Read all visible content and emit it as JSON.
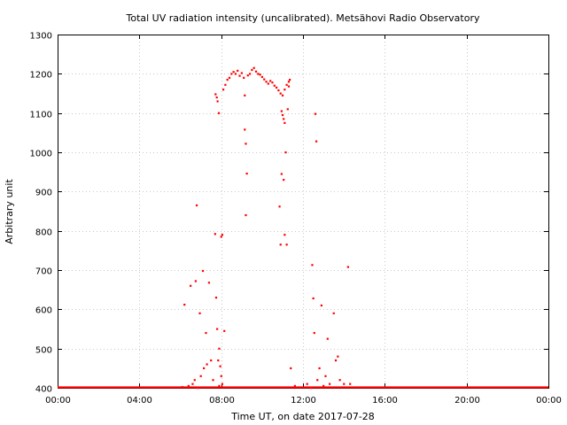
{
  "chart_data": {
    "type": "scatter",
    "title": "Total UV radiation intensity (uncalibrated). Metsähovi Radio Observatory",
    "xlabel": "Time UT, on date 2017-07-28",
    "ylabel": "Arbitrary unit",
    "xlim": [
      0,
      24
    ],
    "ylim": [
      400,
      1300
    ],
    "x_ticks": [
      0,
      4,
      8,
      12,
      16,
      20,
      24
    ],
    "x_tick_labels": [
      "00:00",
      "04:00",
      "08:00",
      "12:00",
      "16:00",
      "20:00",
      "00:00"
    ],
    "y_ticks": [
      400,
      500,
      600,
      700,
      800,
      900,
      1000,
      1100,
      1200,
      1300
    ],
    "y_tick_labels": [
      "400",
      "500",
      "600",
      "700",
      "800",
      "900",
      "1000",
      "1100",
      "1200",
      "1300"
    ],
    "grid": true,
    "point_color": "#ff0000",
    "series": [
      {
        "x": [
          6.2,
          6.5,
          6.75,
          6.8,
          6.95,
          7.1,
          7.25,
          7.4,
          7.7,
          7.75,
          7.8,
          8.0,
          8.05,
          8.15,
          7.85,
          7.9,
          7.95,
          8.0,
          9.15,
          9.2,
          9.25,
          9.2,
          9.15,
          10.85,
          10.9,
          10.95,
          11.05,
          11.1,
          11.2,
          12.45,
          12.5,
          12.55,
          12.6,
          12.65,
          12.9,
          13.2,
          13.5,
          13.7,
          14.2,
          14.3,
          8.1,
          8.2,
          8.3,
          8.4,
          8.5,
          8.6,
          8.7,
          8.8,
          8.9,
          9.0,
          9.1,
          9.3,
          9.4,
          9.5,
          9.6,
          9.7,
          9.8,
          9.9,
          10.0,
          10.1,
          10.2,
          10.3,
          10.4,
          10.5,
          10.6,
          10.7,
          10.8,
          10.9,
          11.0,
          11.1,
          11.2,
          11.3,
          11.35,
          7.72,
          7.78,
          7.82,
          7.88,
          10.95,
          11.0,
          11.05,
          11.1,
          11.15,
          11.25,
          11.3,
          6.1,
          6.4,
          6.6,
          6.7,
          6.85,
          7.0,
          7.15,
          7.3,
          7.5,
          7.6,
          7.9,
          8.05,
          11.4,
          11.6,
          12.2,
          12.4,
          12.7,
          12.8,
          13.0,
          13.1,
          13.3,
          13.6,
          13.8,
          14.0
        ],
        "y": [
          612,
          660,
          672,
          865,
          590,
          698,
          540,
          668,
          792,
          630,
          550,
          785,
          790,
          545,
          470,
          500,
          455,
          430,
          1058,
          1022,
          946,
          840,
          1145,
          862,
          765,
          945,
          930,
          790,
          765,
          713,
          628,
          540,
          1098,
          1028,
          610,
          525,
          590,
          480,
          708,
          410,
          1160,
          1172,
          1185,
          1190,
          1200,
          1205,
          1200,
          1208,
          1195,
          1202,
          1190,
          1196,
          1200,
          1210,
          1215,
          1206,
          1200,
          1198,
          1192,
          1186,
          1180,
          1175,
          1182,
          1178,
          1170,
          1165,
          1158,
          1150,
          1145,
          1160,
          1172,
          1180,
          1185,
          1148,
          1140,
          1130,
          1100,
          1105,
          1095,
          1085,
          1075,
          1000,
          1110,
          1168,
          402,
          405,
          410,
          420,
          400,
          430,
          450,
          460,
          470,
          420,
          405,
          410,
          450,
          405,
          410,
          400,
          420,
          450,
          405,
          430,
          410,
          470,
          420,
          410
        ],
        "baseline": {
          "y": 400,
          "x_range": [
            0,
            24
          ]
        }
      }
    ]
  }
}
